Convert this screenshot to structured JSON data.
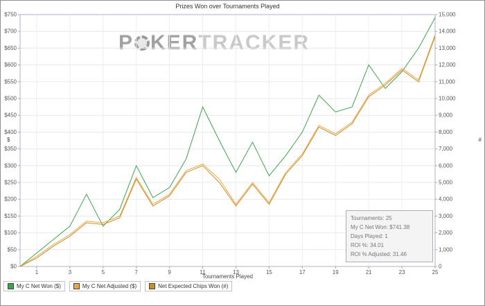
{
  "watermark": {
    "p1": "P",
    "p2": "KER",
    "p3": "TRACKER"
  },
  "info_box": {
    "lines": [
      "Tournaments: 25",
      "My C Net Won: $741.38",
      "Days Played: 1",
      "ROI %: 34.01",
      "ROI % Adjusted: 31.46"
    ]
  },
  "chart_data": {
    "type": "line",
    "title": "Prizes Won over Tournaments Played",
    "xlabel": "Tournaments Played",
    "ylabel_left": "$",
    "ylabel_right": "#",
    "grid": true,
    "legend_position": "bottom-left",
    "xlim": [
      0,
      25
    ],
    "ylim_left": [
      0,
      750
    ],
    "ylim_right": [
      0,
      15000
    ],
    "x": [
      1,
      2,
      3,
      4,
      5,
      6,
      7,
      8,
      9,
      10,
      11,
      12,
      13,
      14,
      15,
      16,
      17,
      18,
      19,
      20,
      21,
      22,
      23,
      24,
      25
    ],
    "x_ticks": [
      1,
      3,
      5,
      7,
      9,
      11,
      13,
      15,
      17,
      19,
      21,
      23,
      25
    ],
    "y_ticks_left": [
      "$0",
      "$50",
      "$100",
      "$150",
      "$200",
      "$250",
      "$300",
      "$350",
      "$400",
      "$450",
      "$500",
      "$550",
      "$600",
      "$650",
      "$700",
      "$750"
    ],
    "y_ticks_right": [
      "0",
      "1,000",
      "2,000",
      "3,000",
      "4,000",
      "5,000",
      "6,000",
      "7,000",
      "8,000",
      "9,000",
      "10,000",
      "11,000",
      "12,000",
      "13,000",
      "14,000",
      "15,000"
    ],
    "series": [
      {
        "name": "My C Net Won ($)",
        "axis": "left",
        "color": "#3fa34d",
        "values": [
          40,
          80,
          120,
          215,
          120,
          170,
          300,
          205,
          235,
          320,
          475,
          375,
          280,
          370,
          270,
          330,
          400,
          510,
          460,
          475,
          600,
          530,
          580,
          650,
          741
        ]
      },
      {
        "name": "My C Net Adjusted ($)",
        "axis": "left",
        "color": "#f2a43e",
        "values": [
          30,
          65,
          95,
          135,
          130,
          150,
          265,
          185,
          215,
          285,
          305,
          260,
          185,
          250,
          190,
          280,
          335,
          420,
          395,
          430,
          510,
          545,
          590,
          555,
          690
        ]
      },
      {
        "name": "Net Expected Chips Won (#)",
        "axis": "right",
        "color": "#c3912f",
        "values": [
          500,
          1200,
          1800,
          2600,
          2500,
          2900,
          5200,
          3600,
          4200,
          5600,
          6000,
          5000,
          3600,
          4900,
          3700,
          5500,
          6600,
          8300,
          7800,
          8500,
          10100,
          10800,
          11700,
          11000,
          13700
        ]
      }
    ]
  }
}
